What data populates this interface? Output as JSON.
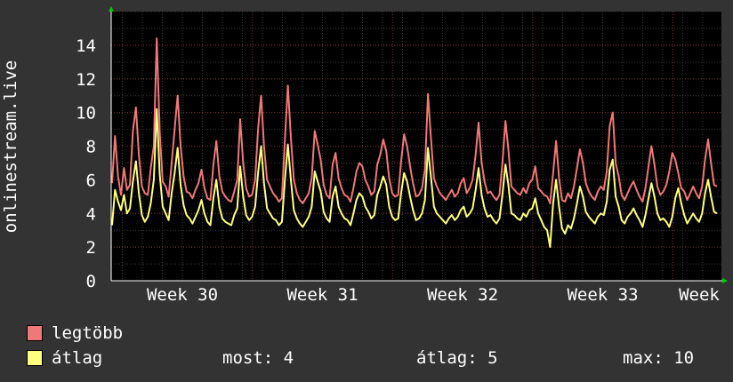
{
  "chart_data": {
    "type": "line",
    "ylabel": "onlinestream.live",
    "ylim": [
      0,
      16
    ],
    "yticks": [
      0,
      2,
      4,
      6,
      8,
      10,
      12,
      14
    ],
    "x_tick_labels": [
      "Week 30",
      "Week 31",
      "Week 32",
      "Week 33",
      "Week"
    ],
    "grid": true,
    "background": "#000000",
    "series": [
      {
        "name": "legtöbb",
        "color": "#f07878",
        "values": [
          5.8,
          8.6,
          6.2,
          5.1,
          6.7,
          5.4,
          5.7,
          8.9,
          10.3,
          7.5,
          5.6,
          5.2,
          5.1,
          6.7,
          8.0,
          14.4,
          8.8,
          5.9,
          5.6,
          5.0,
          7.0,
          9.0,
          11.0,
          8.0,
          6.2,
          5.3,
          5.2,
          4.9,
          5.4,
          5.8,
          6.6,
          5.5,
          4.9,
          4.8,
          6.9,
          8.3,
          6.2,
          5.3,
          5.0,
          4.8,
          4.7,
          5.3,
          6.0,
          9.6,
          7.0,
          5.5,
          5.0,
          5.1,
          6.0,
          9.0,
          11.0,
          8.0,
          6.0,
          5.6,
          5.2,
          5.0,
          4.7,
          4.9,
          8.4,
          11.6,
          8.5,
          6.0,
          5.2,
          4.8,
          4.6,
          4.9,
          5.2,
          6.1,
          8.9,
          8.1,
          7.2,
          5.7,
          5.1,
          4.9,
          6.9,
          7.6,
          6.1,
          5.5,
          5.1,
          5.0,
          4.7,
          5.5,
          6.5,
          7.0,
          6.8,
          6.0,
          5.6,
          5.1,
          5.3,
          6.9,
          7.5,
          8.4,
          7.7,
          6.1,
          5.2,
          5.0,
          5.1,
          7.1,
          8.7,
          8.0,
          6.8,
          5.8,
          5.0,
          5.1,
          5.5,
          6.6,
          11.1,
          8.5,
          6.1,
          5.6,
          5.2,
          5.0,
          4.8,
          5.1,
          5.4,
          5.0,
          5.2,
          5.8,
          6.1,
          5.2,
          5.5,
          6.0,
          7.5,
          9.4,
          7.0,
          5.9,
          5.2,
          5.3,
          5.0,
          4.8,
          5.1,
          7.0,
          9.5,
          7.8,
          5.6,
          5.4,
          5.2,
          5.1,
          5.5,
          5.2,
          5.8,
          6.0,
          6.8,
          5.5,
          5.3,
          5.1,
          5.0,
          4.6,
          6.4,
          8.3,
          6.1,
          4.8,
          4.7,
          5.2,
          4.9,
          5.6,
          6.7,
          7.8,
          7.0,
          5.8,
          5.3,
          5.0,
          4.8,
          5.3,
          5.6,
          5.4,
          6.5,
          9.2,
          10.0,
          7.0,
          6.2,
          5.1,
          4.8,
          5.2,
          5.6,
          5.9,
          5.4,
          5.0,
          4.7,
          5.5,
          6.8,
          8.0,
          6.9,
          5.6,
          5.1,
          5.3,
          5.7,
          6.5,
          7.6,
          7.2,
          6.4,
          5.5,
          5.3,
          4.8,
          5.2,
          5.6,
          5.2,
          4.9,
          5.6,
          7.2,
          8.4,
          7.0,
          5.7,
          5.6
        ]
      },
      {
        "name": "átlag",
        "color": "#ffff80",
        "values": [
          3.3,
          5.4,
          4.7,
          4.2,
          5.1,
          4.0,
          4.3,
          5.9,
          7.1,
          5.2,
          3.9,
          3.5,
          3.8,
          4.6,
          6.0,
          10.2,
          6.3,
          4.4,
          4.0,
          3.6,
          5.2,
          6.4,
          7.9,
          5.7,
          4.5,
          3.9,
          3.7,
          3.4,
          3.8,
          4.2,
          4.8,
          4.0,
          3.5,
          3.3,
          4.9,
          6.0,
          4.4,
          3.7,
          3.5,
          3.4,
          3.3,
          3.9,
          4.3,
          6.8,
          5.0,
          3.9,
          3.6,
          3.8,
          4.4,
          6.4,
          8.0,
          5.8,
          4.3,
          4.0,
          3.7,
          3.6,
          3.3,
          3.5,
          6.0,
          8.1,
          6.0,
          4.2,
          3.7,
          3.4,
          3.2,
          3.5,
          3.8,
          4.4,
          6.5,
          5.9,
          5.3,
          4.1,
          3.7,
          3.5,
          5.0,
          5.6,
          4.4,
          4.0,
          3.7,
          3.6,
          3.3,
          4.0,
          4.8,
          5.2,
          5.0,
          4.4,
          4.1,
          3.7,
          3.9,
          5.1,
          5.6,
          6.2,
          5.7,
          4.4,
          3.8,
          3.6,
          3.7,
          5.2,
          6.4,
          5.9,
          5.0,
          4.2,
          3.6,
          3.7,
          4.0,
          4.8,
          7.9,
          6.2,
          4.4,
          4.0,
          3.8,
          3.6,
          3.4,
          3.7,
          3.9,
          3.6,
          3.8,
          4.2,
          4.4,
          3.8,
          4.0,
          4.3,
          5.4,
          6.7,
          5.1,
          4.3,
          3.8,
          3.9,
          3.6,
          3.4,
          3.7,
          5.1,
          6.9,
          5.7,
          4.0,
          3.9,
          3.7,
          3.6,
          4.0,
          3.8,
          4.2,
          4.3,
          4.9,
          4.0,
          3.6,
          3.2,
          3.0,
          2.0,
          4.6,
          6.0,
          4.4,
          3.1,
          2.8,
          3.3,
          3.1,
          3.7,
          4.6,
          5.6,
          5.0,
          4.1,
          3.8,
          3.6,
          3.4,
          3.8,
          4.0,
          3.9,
          4.7,
          6.6,
          7.2,
          5.0,
          4.4,
          3.6,
          3.4,
          3.8,
          4.0,
          4.3,
          3.9,
          3.6,
          3.2,
          3.9,
          4.9,
          5.8,
          5.0,
          4.0,
          3.6,
          3.7,
          3.5,
          3.2,
          3.8,
          4.9,
          5.5,
          4.6,
          3.9,
          3.4,
          3.7,
          4.0,
          3.7,
          3.5,
          4.0,
          5.2,
          6.0,
          5.0,
          4.1,
          4.0
        ]
      }
    ]
  },
  "legend": [
    {
      "label": "legtöbb",
      "color": "#f07878"
    },
    {
      "label": "átlag",
      "color": "#ffff80"
    }
  ],
  "stats": {
    "now": "most: 4",
    "avg": "átlag: 5",
    "max": "max: 10"
  }
}
